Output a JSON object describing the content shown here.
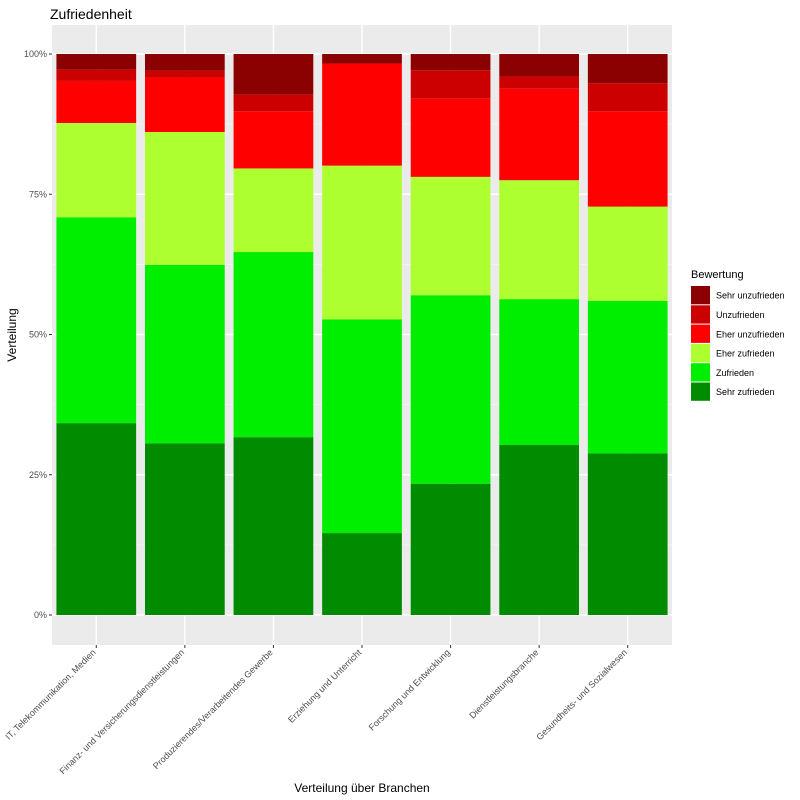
{
  "chart_data": {
    "type": "bar",
    "stacked": true,
    "title": "Zufriedenheit",
    "xlabel": "Verteilung über Branchen",
    "ylabel": "Verteilung",
    "ylim": [
      0,
      1
    ],
    "y_ticks": [
      "0%",
      "25%",
      "50%",
      "75%",
      "100%"
    ],
    "grid": true,
    "legend": {
      "title": "Bewertung",
      "placement": "right",
      "entries": [
        "Sehr unzufrieden",
        "Unzufrieden",
        "Eher unzufrieden",
        "Eher zufrieden",
        "Zufrieden",
        "Sehr zufrieden"
      ]
    },
    "categories": [
      "IT, Telekommunikation, Medien",
      "Finanz- und Versicherungsdienstleistungen",
      "Produzierendes/Verarbeitendes Gewerbe",
      "Erziehung und Unterricht",
      "Forschung und Entwicklung",
      "Dienstleistungsbranche",
      "Gesundheits- und Sozialwesen"
    ],
    "series": [
      {
        "name": "Sehr zufrieden",
        "color": "#008B00",
        "values": [
          0.342,
          0.306,
          0.317,
          0.146,
          0.234,
          0.303,
          0.288
        ]
      },
      {
        "name": "Zufrieden",
        "color": "#00EE00",
        "values": [
          0.367,
          0.318,
          0.33,
          0.381,
          0.336,
          0.26,
          0.272
        ]
      },
      {
        "name": "Eher zufrieden",
        "color": "#ADFF2F",
        "values": [
          0.168,
          0.237,
          0.149,
          0.274,
          0.211,
          0.212,
          0.168
        ]
      },
      {
        "name": "Eher unzufrieden",
        "color": "#FF0000",
        "values": [
          0.075,
          0.097,
          0.102,
          0.182,
          0.14,
          0.163,
          0.17
        ]
      },
      {
        "name": "Unzufrieden",
        "color": "#CD0000",
        "values": [
          0.02,
          0.012,
          0.03,
          0.0,
          0.05,
          0.022,
          0.05
        ]
      },
      {
        "name": "Sehr unzufrieden",
        "color": "#8B0000",
        "values": [
          0.028,
          0.03,
          0.072,
          0.017,
          0.029,
          0.04,
          0.052
        ]
      }
    ]
  }
}
